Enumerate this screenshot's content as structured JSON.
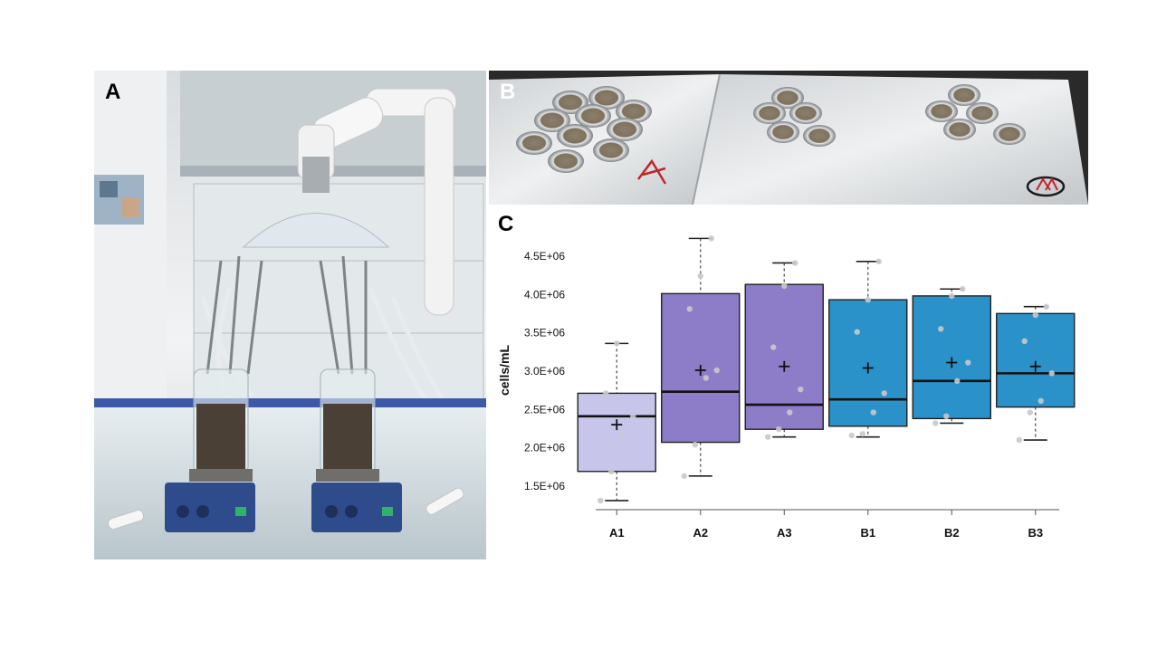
{
  "panels": {
    "a_label": "A",
    "b_label": "B",
    "c_label": "C"
  },
  "colors": {
    "A1": "#c7c6ea",
    "A2": "#8d7cc8",
    "A3": "#8d7cc8",
    "B1": "#2a92c8",
    "B2": "#2a92c8",
    "B3": "#2a92c8",
    "stroke": "#222222",
    "points": "#c9c9c9"
  },
  "chart_data": {
    "type": "boxplot",
    "title": "",
    "xlabel": "",
    "ylabel": "cells/mL",
    "ylim": [
      1500000,
      4500000
    ],
    "yticks": [
      {
        "value": 1500000,
        "label": "1.5E+06"
      },
      {
        "value": 2000000,
        "label": "2.0E+06"
      },
      {
        "value": 2500000,
        "label": "2.5E+06"
      },
      {
        "value": 3000000,
        "label": "3.0E+06"
      },
      {
        "value": 3500000,
        "label": "3.5E+06"
      },
      {
        "value": 4000000,
        "label": "4.0E+06"
      },
      {
        "value": 4500000,
        "label": "4.5E+06"
      }
    ],
    "grid": false,
    "legend": "none",
    "categories": [
      "A1",
      "A2",
      "A3",
      "B1",
      "B2",
      "B3"
    ],
    "boxes": [
      {
        "name": "A1",
        "min": 1300000,
        "q1": 1680000,
        "median": 2400000,
        "q3": 2700000,
        "max": 3350000,
        "mean": 2290000,
        "points": [
          1300000,
          1680000,
          2150000,
          2400000,
          2700000,
          3350000
        ]
      },
      {
        "name": "A2",
        "min": 1620000,
        "q1": 2060000,
        "median": 2720000,
        "q3": 4000000,
        "max": 4720000,
        "mean": 3000000,
        "points": [
          1620000,
          2030000,
          2900000,
          3000000,
          3800000,
          4230000,
          4720000
        ]
      },
      {
        "name": "A3",
        "min": 2130000,
        "q1": 2230000,
        "median": 2550000,
        "q3": 4120000,
        "max": 4400000,
        "mean": 3050000,
        "points": [
          2130000,
          2230000,
          2450000,
          2750000,
          3300000,
          4100000,
          4400000
        ]
      },
      {
        "name": "B1",
        "min": 2130000,
        "q1": 2270000,
        "median": 2620000,
        "q3": 3920000,
        "max": 4420000,
        "mean": 3030000,
        "points": [
          2150000,
          2170000,
          2450000,
          2700000,
          3500000,
          3920000,
          4420000
        ]
      },
      {
        "name": "B2",
        "min": 2310000,
        "q1": 2370000,
        "median": 2860000,
        "q3": 3970000,
        "max": 4060000,
        "mean": 3100000,
        "points": [
          2310000,
          2400000,
          2860000,
          3100000,
          3540000,
          3970000,
          4060000
        ]
      },
      {
        "name": "B3",
        "min": 2090000,
        "q1": 2520000,
        "median": 2960000,
        "q3": 3740000,
        "max": 3830000,
        "mean": 3050000,
        "points": [
          2090000,
          2450000,
          2600000,
          2960000,
          3380000,
          3720000,
          3830000
        ]
      }
    ]
  }
}
